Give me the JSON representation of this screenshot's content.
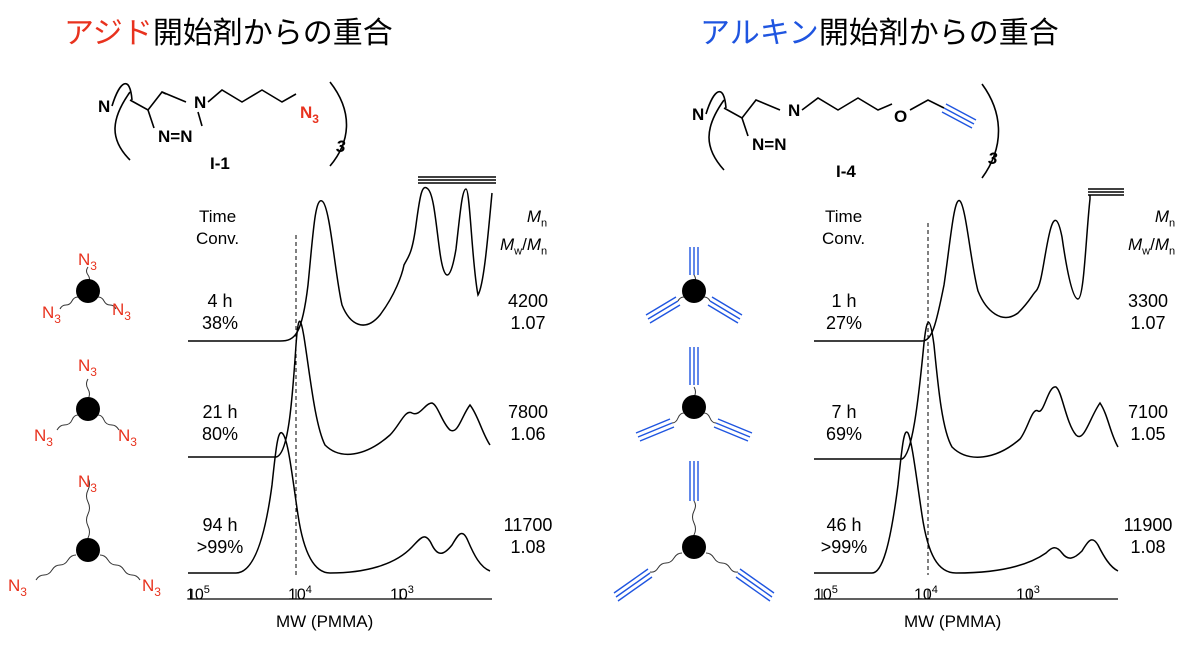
{
  "colors": {
    "azide": "#e8321e",
    "alkyne": "#1f55e0",
    "ink": "#000000"
  },
  "panels": [
    {
      "heading_colored": "アジド",
      "heading_rest": "開始剤からの重合",
      "compound_label": "I-1",
      "structure": {
        "N_center": "N",
        "triazole": "N=N",
        "N_ring": "N",
        "terminal": "N3",
        "repeat": "3"
      },
      "star_group": "N3",
      "col_head_left": [
        "Time",
        "Conv."
      ],
      "col_head_right": [
        "Mn",
        "Mw/Mn"
      ]
    },
    {
      "heading_colored": "アルキン",
      "heading_rest": "開始剤からの重合",
      "compound_label": "I-4",
      "structure": {
        "N_center": "N",
        "triazole": "N=N",
        "N_ring": "N",
        "oxygen": "O",
        "repeat": "3"
      },
      "col_head_left": [
        "Time",
        "Conv."
      ],
      "col_head_right": [
        "Mn",
        "Mw/Mn"
      ]
    }
  ],
  "chart_data": [
    {
      "type": "line",
      "xlabel": "MW (PMMA)",
      "x_scale": "log",
      "x_direction": "decreasing",
      "x_ticks": [
        "10^5",
        "10^4",
        "10^3"
      ],
      "reference_line": "10^4 (dashed)",
      "series": [
        {
          "time": "4 h",
          "conv": "38%",
          "Mn": "4200",
          "Mw_Mn": "1.07",
          "peak_mw": 6000
        },
        {
          "time": "21 h",
          "conv": "80%",
          "Mn": "7800",
          "Mw_Mn": "1.06",
          "peak_mw": 10000
        },
        {
          "time": "94 h",
          "conv": ">99%",
          "Mn": "11700",
          "Mw_Mn": "1.08",
          "peak_mw": 14000
        }
      ]
    },
    {
      "type": "line",
      "xlabel": "MW (PMMA)",
      "x_scale": "log",
      "x_direction": "decreasing",
      "x_ticks": [
        "10^5",
        "10^4",
        "10^3"
      ],
      "reference_line": "10^4 (dashed)",
      "series": [
        {
          "time": "1 h",
          "conv": "27%",
          "Mn": "3300",
          "Mw_Mn": "1.07",
          "peak_mw": 4700
        },
        {
          "time": "7 h",
          "conv": "69%",
          "Mn": "7100",
          "Mw_Mn": "1.05",
          "peak_mw": 10000
        },
        {
          "time": "46 h",
          "conv": ">99%",
          "Mn": "11900",
          "Mw_Mn": "1.08",
          "peak_mw": 14000
        }
      ]
    }
  ]
}
